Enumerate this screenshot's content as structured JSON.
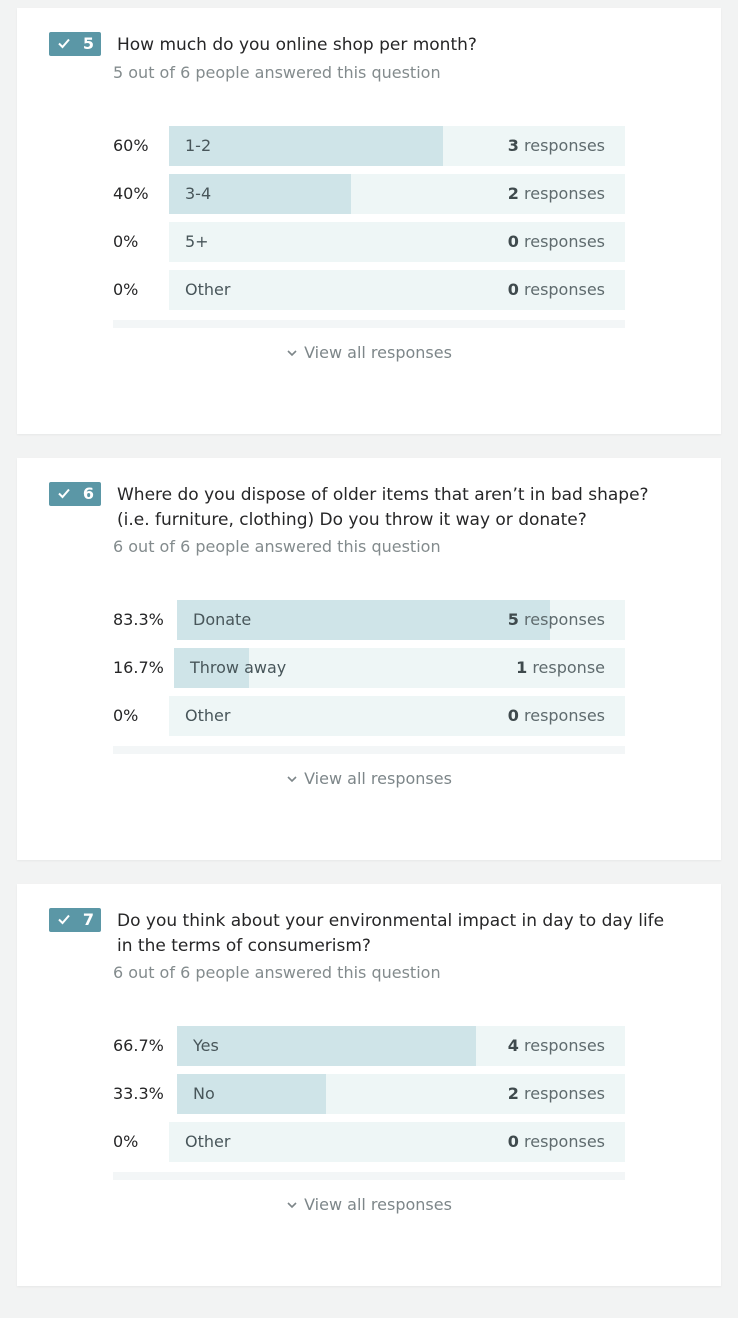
{
  "questions": [
    {
      "number": "5",
      "title_line1": "How much do you online shop per month?",
      "title_line2": "",
      "answered": "5 out of 6 people answered this question",
      "view_all": "View all responses",
      "options": [
        {
          "pct": "60%",
          "label": "1-2",
          "count": "3",
          "unit": " responses",
          "fraction": 0.6
        },
        {
          "pct": "40%",
          "label": "3-4",
          "count": "2",
          "unit": " responses",
          "fraction": 0.4
        },
        {
          "pct": "0%",
          "label": "5+",
          "count": "0",
          "unit": " responses",
          "fraction": 0
        },
        {
          "pct": "0%",
          "label": "Other",
          "count": "0",
          "unit": " responses",
          "fraction": 0
        }
      ]
    },
    {
      "number": "6",
      "title_line1": "Where do you dispose of older items that aren’t in bad shape?",
      "title_line2": "(i.e. furniture, clothing) Do you throw it way or donate?",
      "answered": "6 out of 6 people answered this question",
      "view_all": "View all responses",
      "options": [
        {
          "pct": "83.3%",
          "label": "Donate",
          "count": "5",
          "unit": " responses",
          "fraction": 0.833
        },
        {
          "pct": "16.7%",
          "label": "Throw away",
          "count": "1",
          "unit": " response",
          "fraction": 0.167
        },
        {
          "pct": "0%",
          "label": "Other",
          "count": "0",
          "unit": " responses",
          "fraction": 0
        }
      ]
    },
    {
      "number": "7",
      "title_line1": "Do you think about your environmental impact in day to day life",
      "title_line2": "in the terms of consumerism?",
      "answered": "6 out of 6 people answered this question",
      "view_all": "View all responses",
      "options": [
        {
          "pct": "66.7%",
          "label": "Yes",
          "count": "4",
          "unit": " responses",
          "fraction": 0.667
        },
        {
          "pct": "33.3%",
          "label": "No",
          "count": "2",
          "unit": " responses",
          "fraction": 0.333
        },
        {
          "pct": "0%",
          "label": "Other",
          "count": "0",
          "unit": " responses",
          "fraction": 0
        }
      ]
    }
  ],
  "colors": {
    "badge": "#5b97a6",
    "bar_track": "#eef6f6",
    "bar_fill": "#cfe4e8"
  }
}
